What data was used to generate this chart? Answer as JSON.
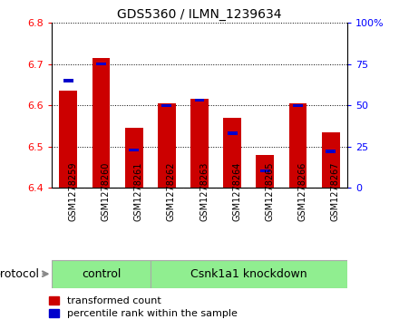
{
  "title": "GDS5360 / ILMN_1239634",
  "samples": [
    "GSM1278259",
    "GSM1278260",
    "GSM1278261",
    "GSM1278262",
    "GSM1278263",
    "GSM1278264",
    "GSM1278265",
    "GSM1278266",
    "GSM1278267"
  ],
  "transformed_counts": [
    6.635,
    6.715,
    6.545,
    6.605,
    6.615,
    6.57,
    6.48,
    6.605,
    6.535
  ],
  "percentile_ranks": [
    65,
    75,
    23,
    50,
    53,
    33,
    10,
    50,
    22
  ],
  "ylim": [
    6.4,
    6.8
  ],
  "yticks": [
    6.4,
    6.5,
    6.6,
    6.7,
    6.8
  ],
  "y2lim": [
    0,
    100
  ],
  "y2ticks": [
    0,
    25,
    50,
    75,
    100
  ],
  "y2ticklabels": [
    "0",
    "25",
    "50",
    "75",
    "100%"
  ],
  "bar_color": "#cc0000",
  "percentile_color": "#0000cc",
  "control_samples": 3,
  "control_label": "control",
  "knockdown_label": "Csnk1a1 knockdown",
  "green_bg": "#90ee90",
  "gray_bg": "#d3d3d3",
  "protocol_label": "protocol",
  "legend_transformed": "transformed count",
  "legend_percentile": "percentile rank within the sample",
  "bar_width": 0.55
}
